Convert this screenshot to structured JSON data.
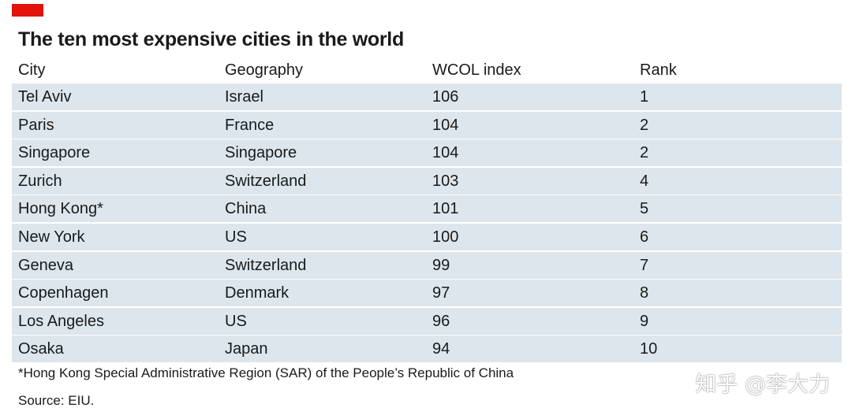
{
  "title": "The ten most expensive cities in the world",
  "colors": {
    "accent": "#e3120b",
    "row_background": "#dde6ed"
  },
  "chart_data": {
    "type": "table",
    "title": "The ten most expensive cities in the world",
    "columns": [
      "City",
      "Geography",
      "WCOL index",
      "Rank"
    ],
    "rows": [
      [
        "Tel Aviv",
        "Israel",
        "106",
        "1"
      ],
      [
        "Paris",
        "France",
        "104",
        "2"
      ],
      [
        "Singapore",
        "Singapore",
        "104",
        "2"
      ],
      [
        "Zurich",
        "Switzerland",
        "103",
        "4"
      ],
      [
        "Hong Kong*",
        "China",
        "101",
        "5"
      ],
      [
        "New York",
        "US",
        "100",
        "6"
      ],
      [
        "Geneva",
        "Switzerland",
        "99",
        "7"
      ],
      [
        "Copenhagen",
        "Denmark",
        "97",
        "8"
      ],
      [
        "Los Angeles",
        "US",
        "96",
        "9"
      ],
      [
        "Osaka",
        "Japan",
        "94",
        "10"
      ]
    ]
  },
  "footnote": "*Hong Kong Special Administrative Region (SAR) of the People’s Republic of China",
  "source": "Source: EIU.",
  "watermark": "知乎 @李大力"
}
